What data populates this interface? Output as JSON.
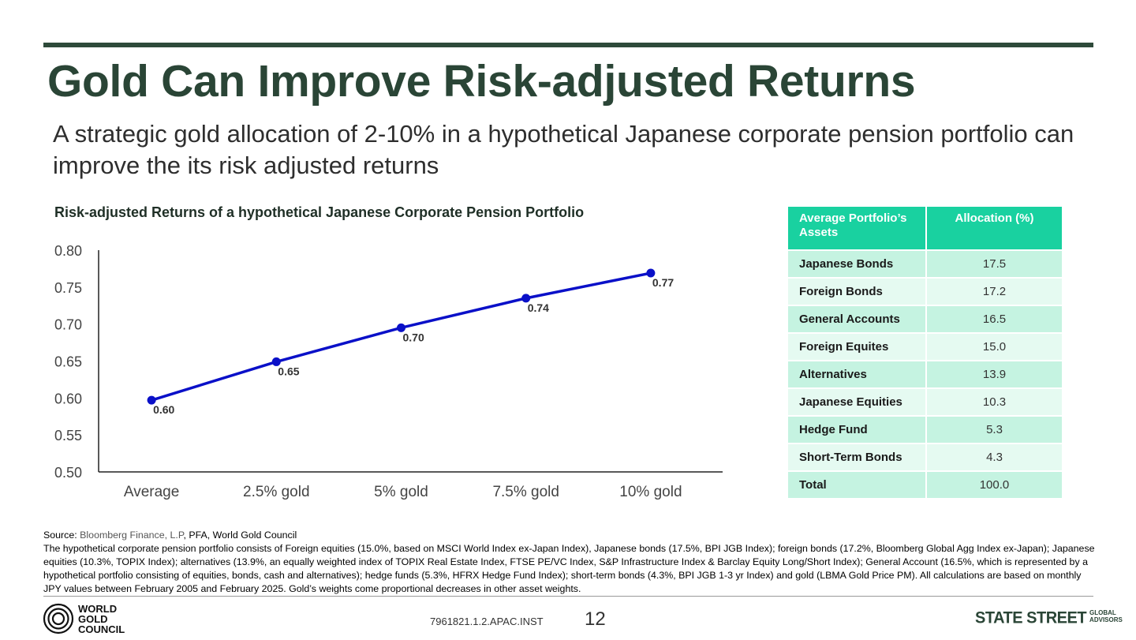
{
  "title": "Gold Can Improve Risk-adjusted Returns",
  "subtitle": "A strategic gold allocation of 2-10% in a hypothetical Japanese corporate pension portfolio can improve the its risk adjusted returns",
  "chart_data": {
    "type": "line",
    "title": "Risk-adjusted Returns of a hypothetical Japanese Corporate Pension Portfolio",
    "categories": [
      "Average",
      "2.5% gold",
      "5% gold",
      "7.5% gold",
      "10% gold"
    ],
    "values": [
      0.597,
      0.649,
      0.695,
      0.735,
      0.769
    ],
    "data_labels": [
      "0.60",
      "0.65",
      "0.70",
      "0.74",
      "0.77"
    ],
    "yticks": [
      "0.80",
      "0.75",
      "0.70",
      "0.65",
      "0.60",
      "0.55",
      "0.50"
    ],
    "ylim": [
      0.5,
      0.8
    ],
    "xlabel": "",
    "ylabel": "",
    "grid": false,
    "line_color": "#0a10c8"
  },
  "table": {
    "headers": [
      "Average Portfolio’s Assets",
      "Allocation (%)"
    ],
    "rows": [
      [
        "Japanese Bonds",
        "17.5"
      ],
      [
        "Foreign Bonds",
        "17.2"
      ],
      [
        "General Accounts",
        "16.5"
      ],
      [
        "Foreign Equites",
        "15.0"
      ],
      [
        "Alternatives",
        "13.9"
      ],
      [
        "Japanese Equities",
        "10.3"
      ],
      [
        "Hedge Fund",
        "5.3"
      ],
      [
        "Short-Term Bonds",
        "4.3"
      ],
      [
        "Total",
        "100.0"
      ]
    ]
  },
  "source": {
    "label": "Source:",
    "bloomberg": "Bloomberg Finance, L.P",
    "rest": ", PFA, World Gold Council",
    "note": "The hypothetical corporate pension portfolio consists of Foreign equities (15.0%, based on MSCI World Index ex-Japan Index), Japanese bonds (17.5%, BPI JGB Index); foreign bonds (17.2%, Bloomberg Global Agg Index ex-Japan); Japanese equities (10.3%, TOPIX Index); alternatives (13.9%, an equally weighted index of TOPIX Real Estate Index, FTSE PE/VC Index, S&P Infrastructure Index & Barclay Equity Long/Short Index); General Account (16.5%, which is represented by a hypothetical portfolio consisting of equities, bonds, cash and alternatives); hedge funds (5.3%, HFRX Hedge Fund Index); short-term bonds (4.3%, BPI JGB 1-3 yr Index) and gold (LBMA Gold Price PM). All calculations are based on monthly JPY values between February 2005 and February 2025. Gold’s weights come proportional decreases in other asset weights."
  },
  "footer": {
    "wgc_logo_lines": [
      "WORLD",
      "GOLD",
      "COUNCIL"
    ],
    "doc_code": "7961821.1.2.APAC.INST",
    "page_number": "12",
    "ssga_main": "STATE STREET",
    "ssga_small": [
      "GLOBAL",
      "ADVISORS"
    ]
  },
  "colors": {
    "title": "#2a4536",
    "table_header": "#19d1a0",
    "table_row_dark": "#c5f3e1",
    "table_row_light": "#e5faf1"
  }
}
